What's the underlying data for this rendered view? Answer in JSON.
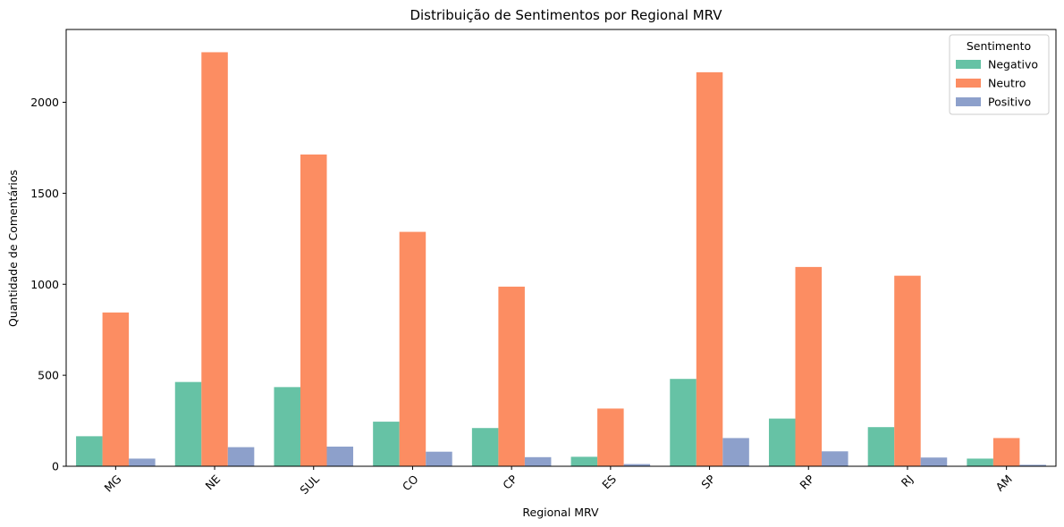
{
  "chart_data": {
    "type": "bar",
    "title": "Distribuição de Sentimentos por Regional MRV",
    "xlabel": "Regional MRV",
    "ylabel": "Quantidade de Comentários",
    "categories": [
      "MG",
      "NE",
      "SUL",
      "CO",
      "CP",
      "ES",
      "SP",
      "RP",
      "RJ",
      "AM"
    ],
    "ylim": [
      0,
      2400
    ],
    "yticks": [
      0,
      500,
      1000,
      1500,
      2000
    ],
    "grid": false,
    "legend": {
      "title": "Sentimento",
      "placement": "top-right"
    },
    "series": [
      {
        "name": "Negativo",
        "color": "#66c2a5",
        "values": [
          165,
          463,
          435,
          245,
          210,
          52,
          480,
          262,
          215,
          42
        ]
      },
      {
        "name": "Neutro",
        "color": "#fc8d62",
        "values": [
          845,
          2275,
          1713,
          1288,
          987,
          317,
          2165,
          1095,
          1047,
          155
        ]
      },
      {
        "name": "Positivo",
        "color": "#8da0cb",
        "values": [
          42,
          105,
          108,
          80,
          50,
          12,
          155,
          82,
          48,
          8
        ]
      }
    ]
  }
}
